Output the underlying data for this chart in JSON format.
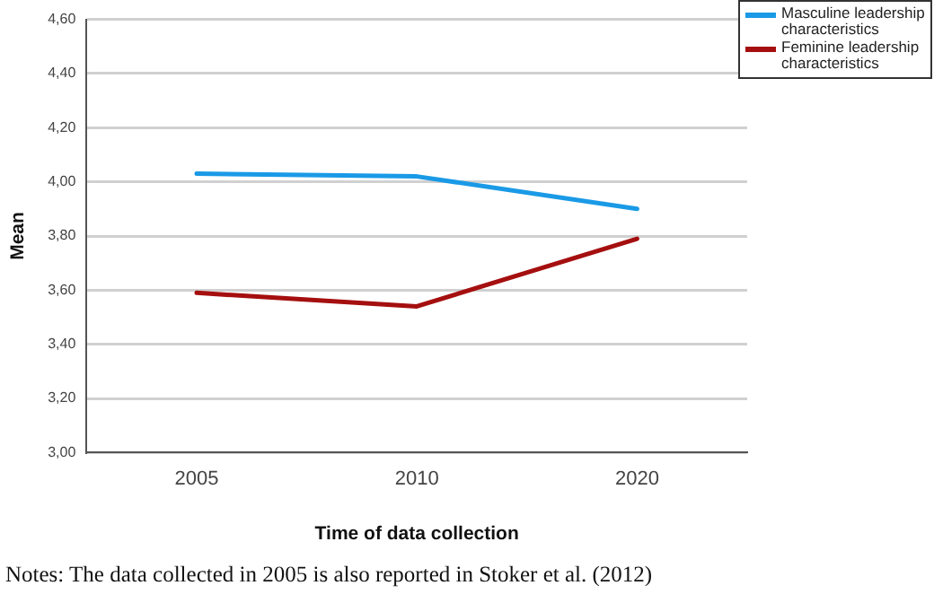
{
  "chart_data": {
    "type": "line",
    "xlabel": "Time of data collection",
    "ylabel": "Mean",
    "categories": [
      "2005",
      "2010",
      "2020"
    ],
    "series": [
      {
        "name": "Masculine leadership characteristics",
        "color": "#1a9ae6",
        "values": [
          4.03,
          4.02,
          3.9
        ]
      },
      {
        "name": "Feminine leadership characteristics",
        "color": "#a50f0f",
        "values": [
          3.59,
          3.54,
          3.79
        ]
      }
    ],
    "ylim": [
      3,
      4.6
    ],
    "yticks": [
      {
        "value": 3,
        "label": "3,00"
      },
      {
        "value": 3.2,
        "label": "3,20"
      },
      {
        "value": 3.4,
        "label": "3,40"
      },
      {
        "value": 3.6,
        "label": "3,60"
      },
      {
        "value": 3.8,
        "label": "3,80"
      },
      {
        "value": 4,
        "label": "4,00"
      },
      {
        "value": 4.2,
        "label": "4,20"
      },
      {
        "value": 4.4,
        "label": "4,40"
      },
      {
        "value": 4.6,
        "label": "4,60"
      }
    ],
    "grid": "y",
    "legend": "top right",
    "marker": "none",
    "line_style": "solid",
    "annotations": [
      "Notes: The data collected in 2005 is also reported in Stoker et al. (2012)"
    ]
  }
}
